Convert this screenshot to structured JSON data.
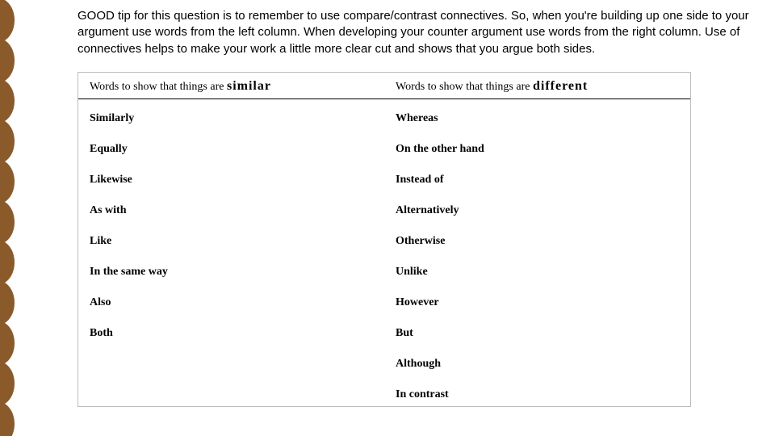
{
  "colors": {
    "scallop": "#8a5a2b",
    "table_border": "#bdbdbd",
    "text": "#000000",
    "background": "#ffffff"
  },
  "tip": {
    "text": "GOOD tip for this question is to remember to use compare/contrast connectives. So, when you're building up one side to your argument use words from the left column. When developing your counter argument use words from the right column. Use of connectives helps to make your work a little more clear cut and shows that you argue both sides."
  },
  "table": {
    "header": {
      "left_prefix": "Words to show that things are ",
      "left_em": "similar",
      "right_prefix": "Words to show that things are ",
      "right_em": "different"
    },
    "rows": [
      {
        "left": "Similarly",
        "right": "Whereas"
      },
      {
        "left": "Equally",
        "right": "On the other hand"
      },
      {
        "left": "Likewise",
        "right": "Instead of"
      },
      {
        "left": "As with",
        "right": "Alternatively"
      },
      {
        "left": "Like",
        "right": "Otherwise"
      },
      {
        "left": "In the same way",
        "right": "Unlike"
      },
      {
        "left": "Also",
        "right": "However"
      },
      {
        "left": "Both",
        "right": "But"
      },
      {
        "left": "",
        "right": "Although"
      },
      {
        "left": "",
        "right": "In contrast"
      }
    ]
  }
}
